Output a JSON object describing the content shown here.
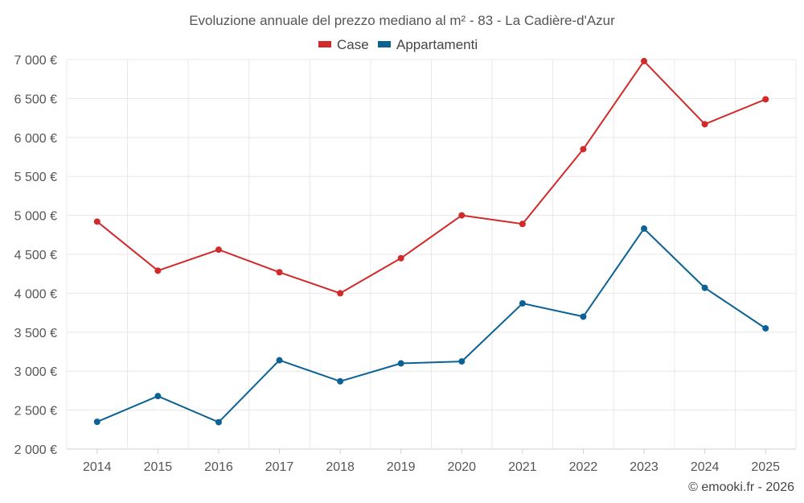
{
  "chart_data": {
    "type": "line",
    "title": "Evoluzione annuale del prezzo mediano al m² - 83 - La Cadière-d'Azur",
    "categories": [
      "2014",
      "2015",
      "2016",
      "2017",
      "2018",
      "2019",
      "2020",
      "2021",
      "2022",
      "2023",
      "2024",
      "2025"
    ],
    "ylim": [
      2000,
      7000
    ],
    "yticks": [
      2000,
      2500,
      3000,
      3500,
      4000,
      4500,
      5000,
      5500,
      6000,
      6500,
      7000
    ],
    "ytick_labels": [
      "2 000 €",
      "2 500 €",
      "3 000 €",
      "3 500 €",
      "4 000 €",
      "4 500 €",
      "5 000 €",
      "5 500 €",
      "6 000 €",
      "6 500 €",
      "7 000 €"
    ],
    "legend_position": "top-center",
    "grid": true,
    "series": [
      {
        "name": "Case",
        "color": "#d12a2a",
        "values": [
          4920,
          4290,
          4560,
          4270,
          4000,
          4450,
          5000,
          4890,
          5850,
          6980,
          6170,
          6490
        ]
      },
      {
        "name": "Appartamenti",
        "color": "#0c6295",
        "values": [
          2350,
          2680,
          2345,
          3140,
          2870,
          3100,
          3125,
          3870,
          3700,
          4830,
          4070,
          3550
        ]
      }
    ]
  },
  "credit": "© emooki.fr - 2026"
}
